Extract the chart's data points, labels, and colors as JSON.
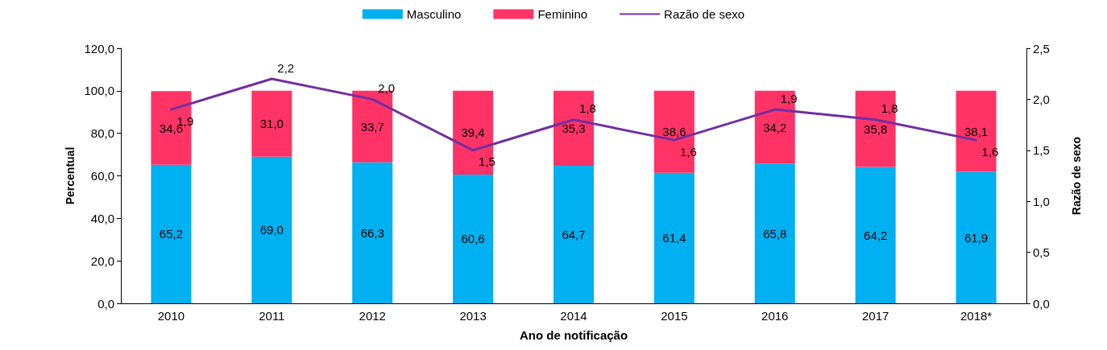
{
  "chart_data": {
    "type": "bar",
    "xlabel": "Ano de notificação",
    "ylabel": "Percentual",
    "y2label": "Razão de sexo",
    "categories": [
      "2010",
      "2011",
      "2012",
      "2013",
      "2014",
      "2015",
      "2016",
      "2017",
      "2018*"
    ],
    "stacked": true,
    "legend": "top",
    "grid": false,
    "marker": "none",
    "ylim": [
      0,
      120
    ],
    "yticks": [
      {
        "value": 0,
        "label": "0,0"
      },
      {
        "value": 20,
        "label": "20,0"
      },
      {
        "value": 40,
        "label": "40,0"
      },
      {
        "value": 60,
        "label": "60,0"
      },
      {
        "value": 80,
        "label": "80,0"
      },
      {
        "value": 100,
        "label": "100,0"
      },
      {
        "value": 120,
        "label": "120,0"
      }
    ],
    "y2lim": [
      0,
      2.5
    ],
    "y2ticks": [
      {
        "value": 0,
        "label": "0,0"
      },
      {
        "value": 0.5,
        "label": "0,5"
      },
      {
        "value": 1,
        "label": "1,0"
      },
      {
        "value": 1.5,
        "label": "1,5"
      },
      {
        "value": 2,
        "label": "2,0"
      },
      {
        "value": 2.5,
        "label": "2,5"
      }
    ],
    "series": [
      {
        "name": "Masculino",
        "color": "#00b0f0",
        "values": [
          65.2,
          69.0,
          66.3,
          60.6,
          64.7,
          61.4,
          65.8,
          64.2,
          61.9
        ],
        "value_labels": [
          "65,2",
          "69,0",
          "66,3",
          "60,6",
          "64,7",
          "61,4",
          "65,8",
          "64,2",
          "61,9"
        ]
      },
      {
        "name": "Feminino",
        "color": "#ff3366",
        "values": [
          34.6,
          31.0,
          33.7,
          39.4,
          35.3,
          38.6,
          34.2,
          35.8,
          38.1
        ],
        "value_labels": [
          "34,6",
          "31,0",
          "33,7",
          "39,4",
          "35,3",
          "38,6",
          "34,2",
          "35,8",
          "38,1"
        ]
      },
      {
        "name": "Razão de sexo",
        "type": "line",
        "axis": "y2",
        "color": "#7030a0",
        "values": [
          1.9,
          2.2,
          2.0,
          1.5,
          1.8,
          1.6,
          1.9,
          1.8,
          1.6
        ],
        "value_labels": [
          "1,9",
          "2,2",
          "2,0",
          "1,5",
          "1,8",
          "1,6",
          "1,9",
          "1,8",
          "1,6"
        ]
      }
    ]
  }
}
